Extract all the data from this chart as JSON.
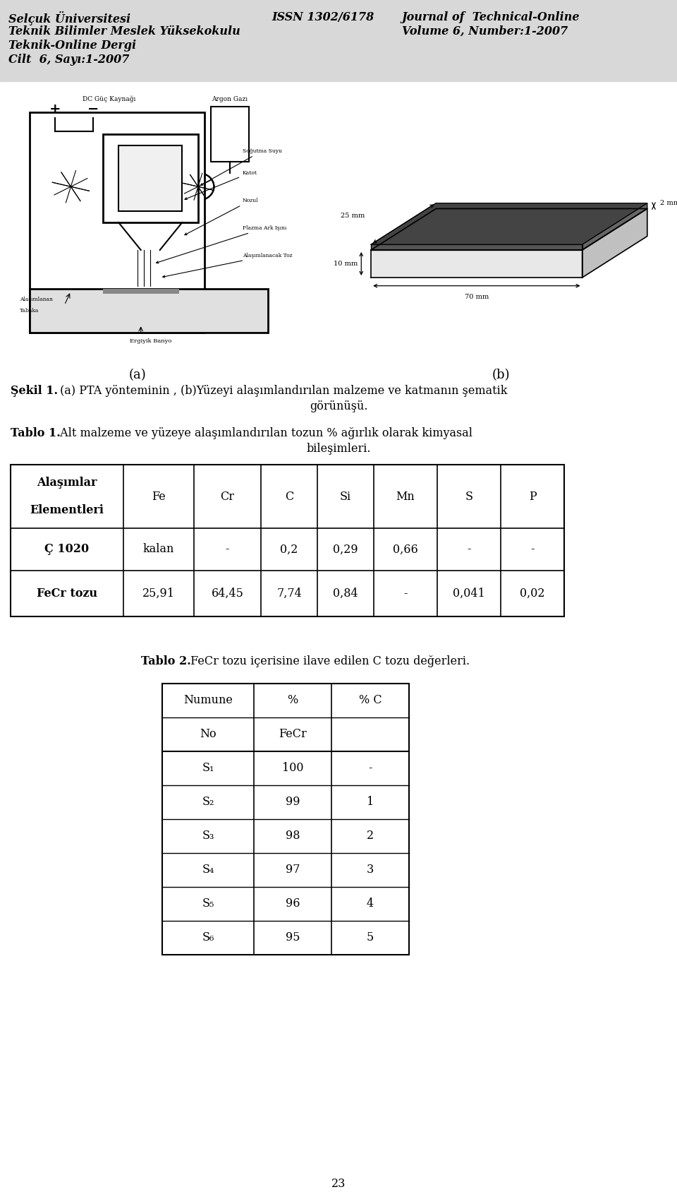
{
  "bg_color": "#f0f0f0",
  "header_bg": "#d8d8d8",
  "page_bg": "#ffffff",
  "header": {
    "left_lines": [
      "Selçuk Üniversitesi",
      "Teknik Bilimler Meslek Yüksekokulu",
      "Teknik-Online Dergi",
      "Cilt  6, Sayı:1-2007"
    ],
    "center": "ISSN 1302/6178",
    "right_lines": [
      "Journal of  Technical-Online",
      "Volume 6, Number:1-2007"
    ]
  },
  "sekil1_caption_bold": "Şekil 1.",
  "sekil1_caption_normal": " (a) PTA yönteminin , (b)Yüzeyi alaşımlandırılan malzeme ve katmanın şematik",
  "sekil1_caption_line2": "görünüşü.",
  "tablo1_caption_bold": "Tablo 1.",
  "tablo1_caption_normal": " Alt malzeme ve yüzeye alaşımlandırılan tozun % ağırlık olarak kimyasal",
  "tablo1_caption_line2": "bileşimleri.",
  "tablo1_headers": [
    "Alaşımlar\n\nElementleri",
    "Fe",
    "Cr",
    "C",
    "Si",
    "Mn",
    "S",
    "P"
  ],
  "tablo1_rows": [
    [
      "Ç 1020",
      "kalan",
      "-",
      "0,2",
      "0,29",
      "0,66",
      "-",
      "-"
    ],
    [
      "FeCr tozu",
      "25,91",
      "64,45",
      "7,74",
      "0,84",
      "-",
      "0,041",
      "0,02"
    ]
  ],
  "tablo2_caption_bold": "Tablo 2.",
  "tablo2_caption_normal": " FeCr tozu içerisine ilave edilen C tozu değerleri.",
  "tablo2_headers_row1": [
    "Numune",
    "%",
    "% C"
  ],
  "tablo2_headers_row2": [
    "No",
    "FeCr",
    ""
  ],
  "tablo2_rows": [
    [
      "S₁",
      "100",
      "-"
    ],
    [
      "S₂",
      "99",
      "1"
    ],
    [
      "S₃",
      "98",
      "2"
    ],
    [
      "S₄",
      "97",
      "3"
    ],
    [
      "S₅",
      "96",
      "4"
    ],
    [
      "S₆",
      "95",
      "5"
    ]
  ],
  "page_number": "23",
  "label_a": "(a)",
  "label_b": "(b)"
}
